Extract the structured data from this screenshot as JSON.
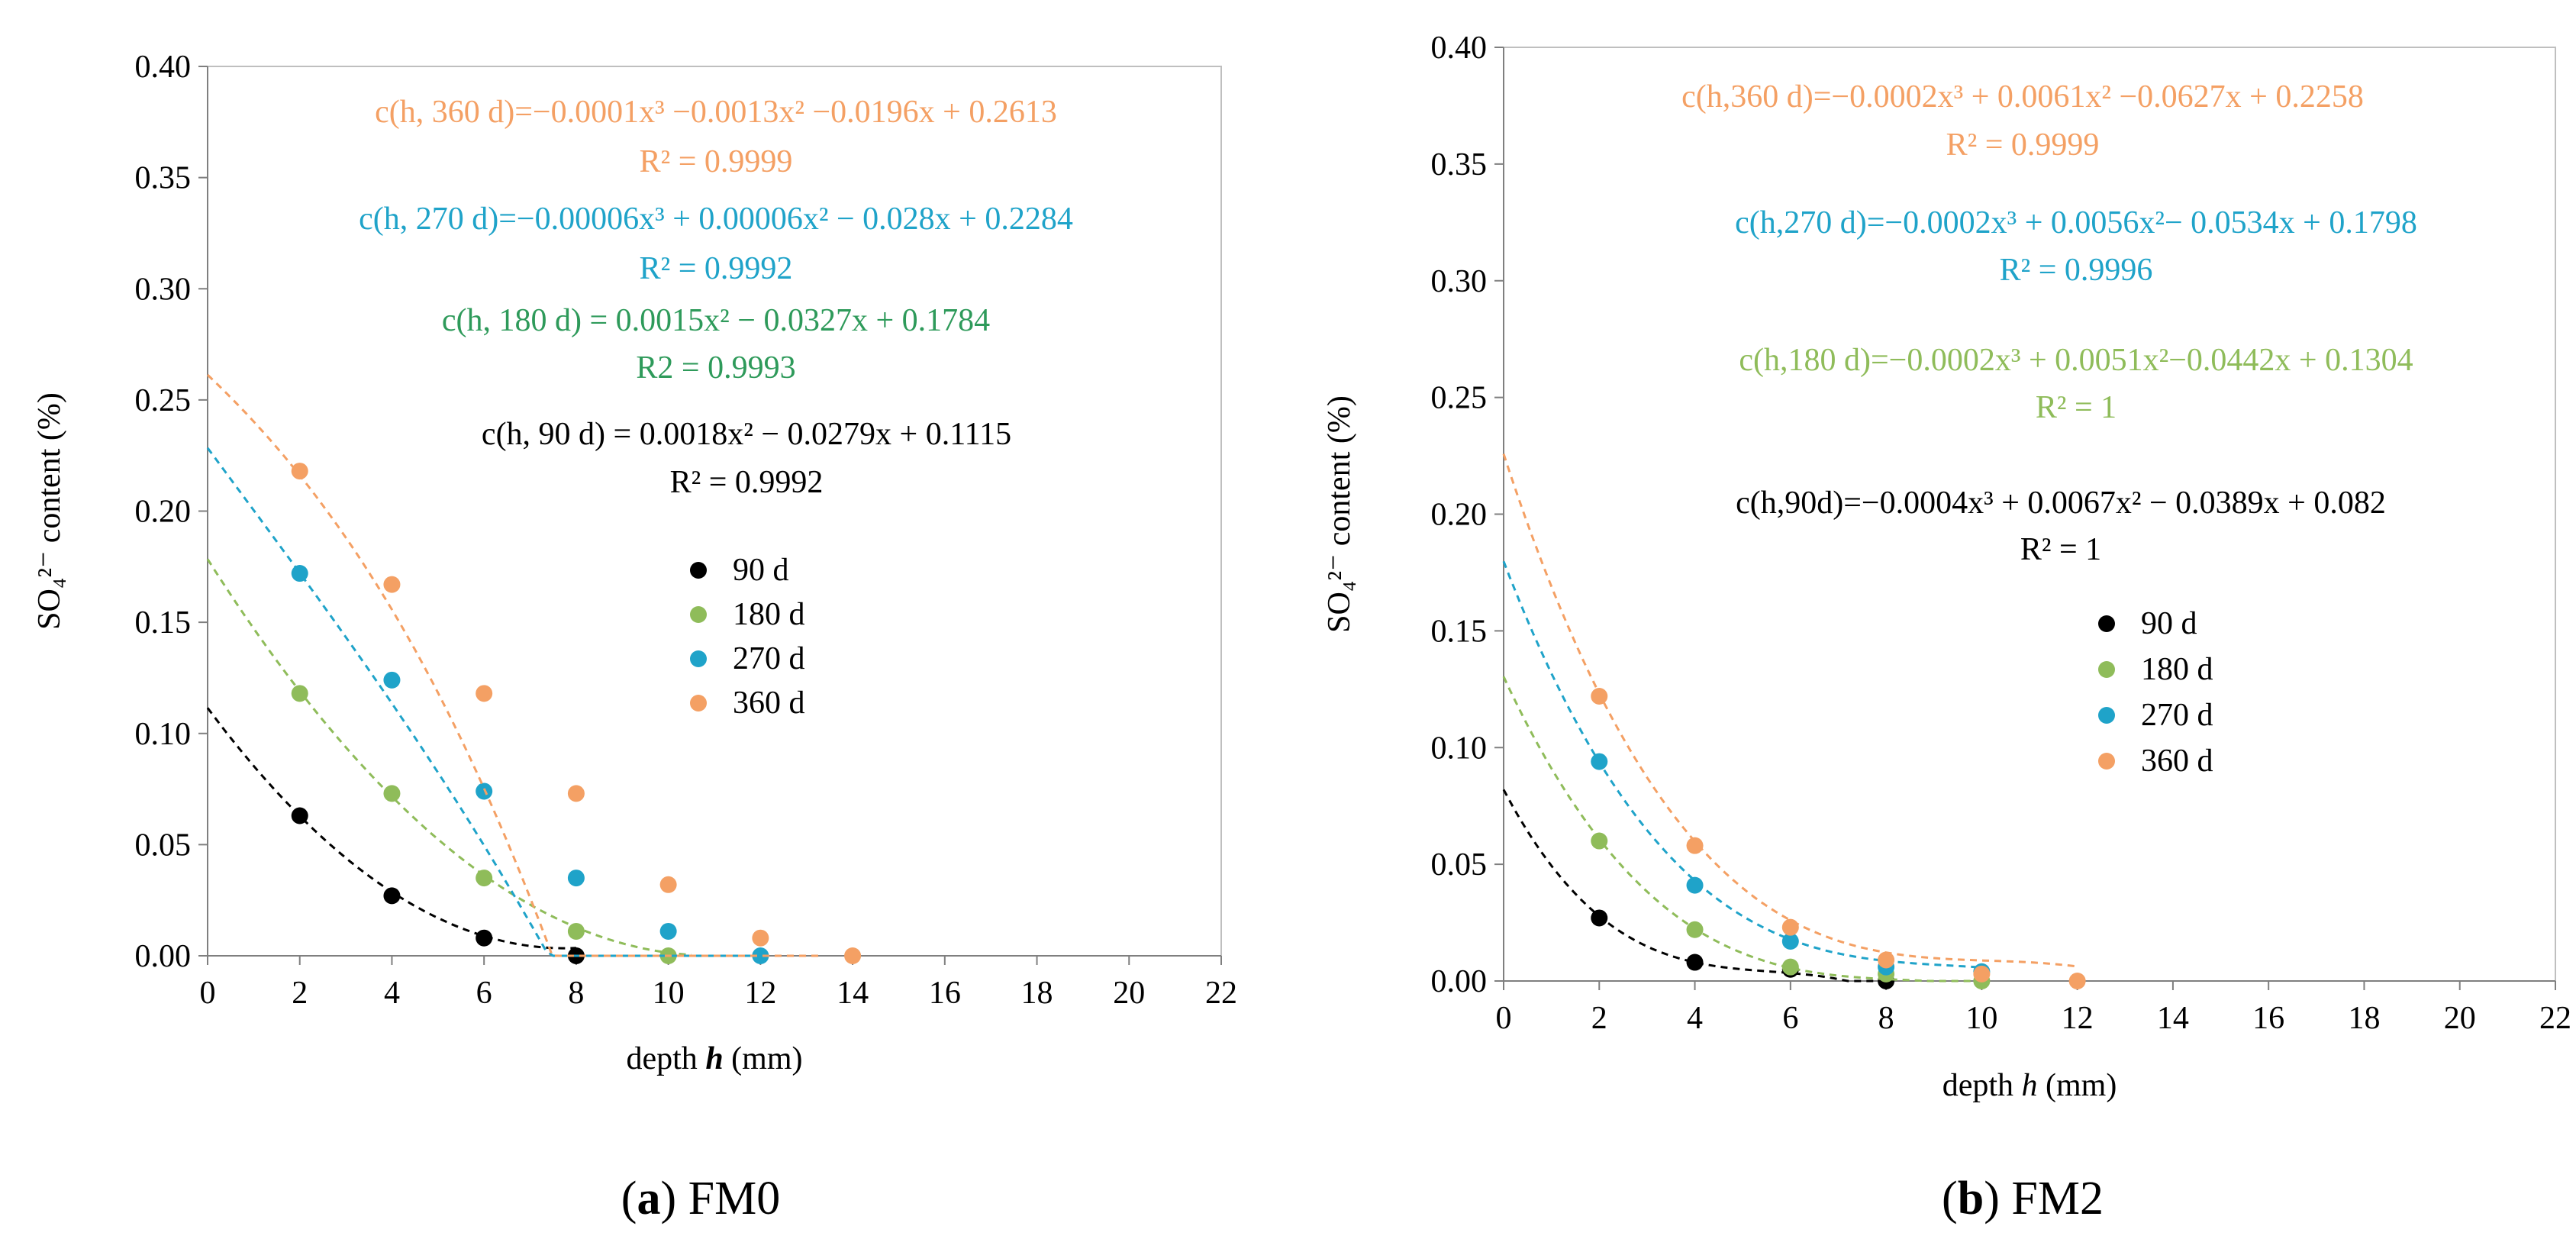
{
  "chart_data": [
    {
      "type": "scatter",
      "panel_label": "a",
      "title": "FM0",
      "xlabel_prefix": "depth",
      "xlabel_var": "h",
      "xlabel_unit": "(mm)",
      "ylabel": "SO₄²⁻ content (%)",
      "xlim": [
        0,
        22
      ],
      "ylim": [
        0,
        0.4
      ],
      "x_ticks": [
        "0",
        "2",
        "4",
        "6",
        "8",
        "10",
        "12",
        "14",
        "16",
        "18",
        "20",
        "22"
      ],
      "y_ticks": [
        "0.00",
        "0.05",
        "0.10",
        "0.15",
        "0.20",
        "0.25",
        "0.30",
        "0.35",
        "0.40"
      ],
      "series": [
        {
          "name": "90 d",
          "color": "#000000",
          "x": [
            2,
            4,
            6,
            8
          ],
          "y": [
            0.063,
            0.027,
            0.008,
            0.0
          ],
          "fit": {
            "coeffs": [
              0.1115,
              -0.0279,
              0.0018,
              0
            ],
            "xmax": 8
          },
          "equation": "c(h, 90 d) = 0.0018x² − 0.0279x + 0.1115",
          "r2": "R² = 0.9992"
        },
        {
          "name": "180 d",
          "color": "#8fbc5a",
          "x": [
            2,
            4,
            6,
            8,
            10
          ],
          "y": [
            0.118,
            0.073,
            0.035,
            0.011,
            0.0
          ],
          "fit": {
            "coeffs": [
              0.1784,
              -0.0327,
              0.0015,
              0
            ],
            "xmax": 10.5
          },
          "equation": "c(h, 180 d) = 0.0015x² − 0.0327x + 0.1784",
          "r2": "R2 = 0.9993"
        },
        {
          "name": "270 d",
          "color": "#1fa3c9",
          "x": [
            2,
            4,
            6,
            8,
            10,
            12
          ],
          "y": [
            0.172,
            0.124,
            0.074,
            0.035,
            0.011,
            0.0
          ],
          "fit": {
            "coeffs": [
              0.2284,
              -0.028,
              6e-05,
              -6e-05
            ],
            "xmax": 12
          },
          "equation": "c(h, 270 d)=−0.00006x³ + 0.00006x² − 0.028x + 0.2284",
          "r2": "R² = 0.9992"
        },
        {
          "name": "360 d",
          "color": "#f4a064",
          "x": [
            2,
            4,
            6,
            8,
            10,
            12,
            14
          ],
          "y": [
            0.218,
            0.167,
            0.118,
            0.073,
            0.032,
            0.008,
            0.0
          ],
          "fit": {
            "coeffs": [
              0.2613,
              -0.0196,
              -0.0013,
              -0.0001
            ],
            "xmax": 13.3
          },
          "equation": "c(h, 360 d)=−0.0001x³ −0.0013x² −0.0196x + 0.2613",
          "r2": "R² = 0.9999"
        }
      ]
    },
    {
      "type": "scatter",
      "panel_label": "b",
      "title": "FM2",
      "xlabel_prefix": "depth",
      "xlabel_var": "h",
      "xlabel_unit": "(mm)",
      "ylabel": "SO₄²⁻ content (%)",
      "xlim": [
        0,
        22
      ],
      "ylim": [
        0,
        0.4
      ],
      "x_ticks": [
        "0",
        "2",
        "4",
        "6",
        "8",
        "10",
        "12",
        "14",
        "16",
        "18",
        "20",
        "22"
      ],
      "y_ticks": [
        "0.00",
        "0.05",
        "0.10",
        "0.15",
        "0.20",
        "0.25",
        "0.30",
        "0.35",
        "0.40"
      ],
      "series": [
        {
          "name": "90 d",
          "color": "#000000",
          "x": [
            2,
            4,
            6,
            8
          ],
          "y": [
            0.027,
            0.008,
            0.005,
            0.0
          ],
          "fit": {
            "coeffs": [
              0.082,
              -0.0389,
              0.0067,
              -0.0004
            ],
            "xmax": 8
          },
          "equation": "c(h,90d)=−0.0004x³ + 0.0067x² − 0.0389x + 0.082",
          "r2": "R² = 1"
        },
        {
          "name": "180 d",
          "color": "#8fbc5a",
          "x": [
            2,
            4,
            6,
            8,
            10
          ],
          "y": [
            0.06,
            0.022,
            0.006,
            0.003,
            0.0
          ],
          "fit": {
            "coeffs": [
              0.1304,
              -0.0442,
              0.0051,
              -0.0002
            ],
            "xmax": 10
          },
          "equation": "c(h,180 d)=−0.0002x³ + 0.0051x²−0.0442x + 0.1304",
          "r2": "R² = 1"
        },
        {
          "name": "270 d",
          "color": "#1fa3c9",
          "x": [
            2,
            4,
            6,
            8,
            10
          ],
          "y": [
            0.094,
            0.041,
            0.017,
            0.006,
            0.004
          ],
          "fit": {
            "coeffs": [
              0.1798,
              -0.0534,
              0.0056,
              -0.0002
            ],
            "xmax": 10
          },
          "equation": "c(h,270 d)=−0.0002x³ + 0.0056x²− 0.0534x + 0.1798",
          "r2": "R² = 0.9996"
        },
        {
          "name": "360 d",
          "color": "#f4a064",
          "x": [
            2,
            4,
            6,
            8,
            10,
            12
          ],
          "y": [
            0.122,
            0.058,
            0.023,
            0.009,
            0.003,
            0.0
          ],
          "fit": {
            "coeffs": [
              0.2258,
              -0.0627,
              0.0061,
              -0.0002
            ],
            "xmax": 12
          },
          "equation": "c(h,360 d)=−0.0002x³ + 0.0061x² −0.0627x + 0.2258",
          "r2": "R² = 0.9999"
        }
      ]
    }
  ]
}
